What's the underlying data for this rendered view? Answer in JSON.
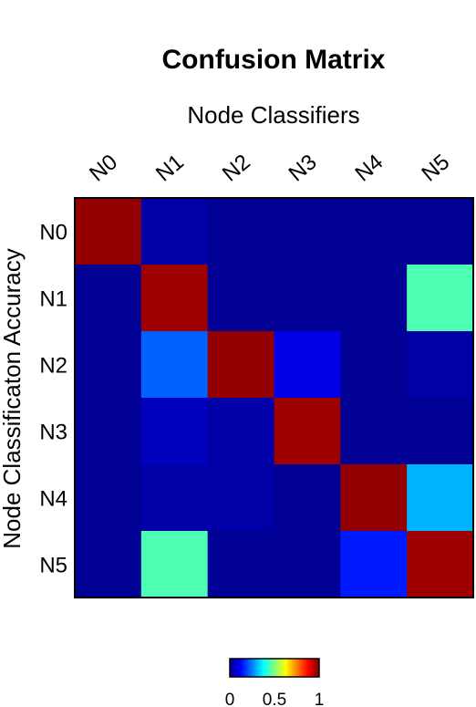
{
  "chart_data": {
    "type": "heatmap",
    "title": "Confusion Matrix",
    "xlabel": "Node Classifiers",
    "ylabel": "Node Classificaton Accuracy",
    "x_categories": [
      "N0",
      "N1",
      "N2",
      "N3",
      "N4",
      "N5"
    ],
    "y_categories": [
      "N0",
      "N1",
      "N2",
      "N3",
      "N4",
      "N5"
    ],
    "values": [
      [
        0.98,
        0.04,
        0.02,
        0.02,
        0.02,
        0.02
      ],
      [
        0.02,
        0.97,
        0.02,
        0.02,
        0.02,
        0.45
      ],
      [
        0.02,
        0.22,
        0.98,
        0.1,
        0.02,
        0.04
      ],
      [
        0.02,
        0.06,
        0.04,
        0.97,
        0.02,
        0.02
      ],
      [
        0.02,
        0.04,
        0.04,
        0.02,
        0.98,
        0.3
      ],
      [
        0.02,
        0.45,
        0.02,
        0.02,
        0.15,
        0.97
      ]
    ],
    "colormap": "jet",
    "colorbar": {
      "min": 0,
      "max": 1,
      "ticks": [
        "0",
        "0.5",
        "1"
      ]
    },
    "grid": false
  }
}
